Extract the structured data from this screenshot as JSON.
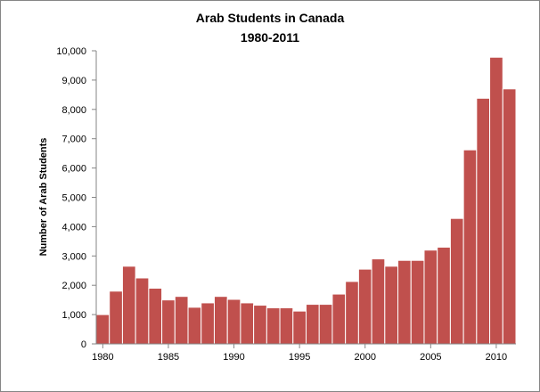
{
  "chart_data": {
    "type": "bar",
    "title": "Arab Students in Canada",
    "subtitle": "1980-2011",
    "xlabel": "",
    "ylabel": "Number of Arab Students",
    "categories": [
      1980,
      1981,
      1982,
      1983,
      1984,
      1985,
      1986,
      1987,
      1988,
      1989,
      1990,
      1991,
      1992,
      1993,
      1994,
      1995,
      1996,
      1997,
      1998,
      1999,
      2000,
      2001,
      2002,
      2003,
      2004,
      2005,
      2006,
      2007,
      2008,
      2009,
      2010,
      2011
    ],
    "x_tick_labels": [
      "1980",
      "1985",
      "1990",
      "1995",
      "2000",
      "2005",
      "2010"
    ],
    "y_tick_labels": [
      "0",
      "1,000",
      "2,000",
      "3,000",
      "4,000",
      "5,000",
      "6,000",
      "7,000",
      "8,000",
      "9,000",
      "10,000"
    ],
    "values": [
      1000,
      1800,
      2650,
      2250,
      1900,
      1500,
      1620,
      1250,
      1400,
      1620,
      1520,
      1400,
      1320,
      1230,
      1230,
      1120,
      1350,
      1350,
      1700,
      2130,
      2550,
      2900,
      2650,
      2850,
      2850,
      3200,
      3300,
      4280,
      6620,
      8380,
      9780,
      8700
    ],
    "ylim": [
      0,
      10000
    ],
    "x_range": [
      1979.5,
      2011.5
    ],
    "grid": false,
    "legend": "none",
    "bar_color": "#c0504d"
  }
}
